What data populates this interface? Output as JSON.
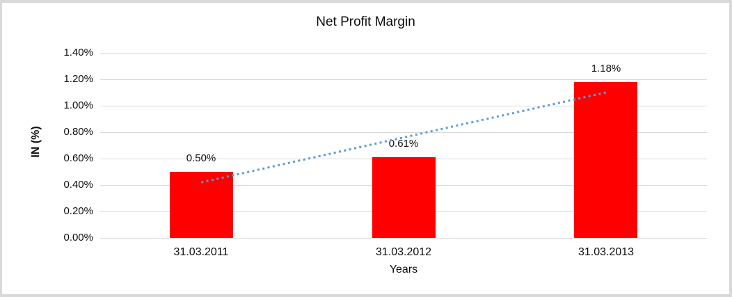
{
  "window": {
    "background_color": "#ffffff",
    "frame_border_color": "#d9d9d9"
  },
  "chart_data": {
    "type": "bar",
    "title": "Net Profit Margin",
    "xlabel": "Years",
    "ylabel": "IN (%)",
    "categories": [
      "31.03.2011",
      "31.03.2012",
      "31.03.2013"
    ],
    "values": [
      0.5,
      0.61,
      1.18
    ],
    "data_labels": [
      "0.50%",
      "0.61%",
      "1.18%"
    ],
    "ylim": [
      0,
      1.4
    ],
    "ytick_labels": [
      "0.00%",
      "0.20%",
      "0.40%",
      "0.60%",
      "0.80%",
      "1.00%",
      "1.20%",
      "1.40%"
    ],
    "grid": true,
    "legend": "none",
    "bar_color": "#ff0000",
    "gridline_color": "#d9d9d9",
    "text_color": "#0d0d0d",
    "trendline": {
      "style": "dotted",
      "color": "#5b9bd5",
      "start_value": 0.42,
      "end_value": 1.1
    }
  }
}
